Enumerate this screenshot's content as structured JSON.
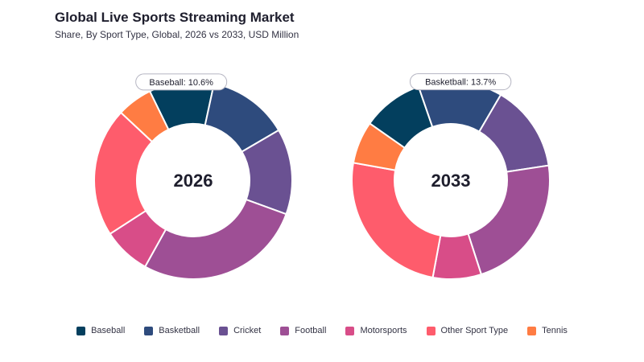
{
  "title": "Global Live Sports Streaming Market",
  "subtitle": "Share, By Sport Type, Global, 2026 vs 2033, USD Million",
  "chart_data": {
    "type": "pie",
    "categories": [
      "Baseball",
      "Basketball",
      "Cricket",
      "Football",
      "Motorsports",
      "Other Sport Type",
      "Tennis"
    ],
    "colors": [
      "#033f5e",
      "#2e4b7d",
      "#6a5192",
      "#9e4f95",
      "#d84d88",
      "#fe5c6c",
      "#ff7c43"
    ],
    "legend_position": "bottom",
    "charts": [
      {
        "center_label": "2026",
        "values": [
          10.6,
          13.2,
          14.0,
          27.5,
          7.8,
          21.1,
          5.8
        ],
        "callout": {
          "category": "Baseball",
          "text": "Baseball: 10.6%"
        }
      },
      {
        "center_label": "2033",
        "values": [
          10.0,
          13.7,
          14.2,
          22.4,
          7.9,
          24.9,
          6.9
        ],
        "callout": {
          "category": "Basketball",
          "text": "Basketball: 13.7%"
        }
      }
    ]
  }
}
